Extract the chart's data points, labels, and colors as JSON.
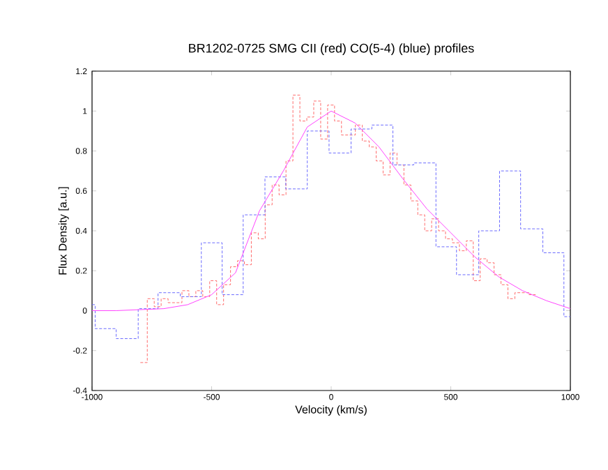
{
  "chart_data": {
    "type": "step",
    "title": "BR1202-0725 SMG CII (red) CO(5-4) (blue) profiles",
    "xlabel": "Velocity (km/s)",
    "ylabel": "Flux Density [a.u.]",
    "xlim": [
      -1000,
      1000
    ],
    "ylim": [
      -0.4,
      1.2
    ],
    "xticks": [
      -1000,
      -500,
      0,
      500,
      1000
    ],
    "yticks": [
      -0.4,
      -0.2,
      0,
      0.2,
      0.4,
      0.6,
      0.8,
      1,
      1.2
    ],
    "grid": false,
    "series": [
      {
        "color": "#ff6b6b",
        "line_style": "dashed",
        "x": [
          -798,
          -769,
          -740,
          -711,
          -682,
          -653,
          -624,
          -595,
          -566,
          -537,
          -508,
          -479,
          -450,
          -421,
          -392,
          -363,
          -334,
          -305,
          -276,
          -247,
          -218,
          -189,
          -160,
          -131,
          -102,
          -73,
          -44,
          -15,
          14,
          43,
          72,
          101,
          130,
          159,
          188,
          217,
          246,
          275,
          304,
          333,
          362,
          391,
          420,
          449,
          478,
          507,
          536,
          565,
          594,
          623,
          652,
          681,
          710,
          739,
          768,
          797,
          826,
          855
        ],
        "values": [
          -0.26,
          0.06,
          0.02,
          0.06,
          0.04,
          0.04,
          0.1,
          0.07,
          0.1,
          0.07,
          0.15,
          0.03,
          0.13,
          0.22,
          0.25,
          0.23,
          0.39,
          0.36,
          0.53,
          0.63,
          0.58,
          0.75,
          1.08,
          0.95,
          0.97,
          1.05,
          0.86,
          1.03,
          0.95,
          0.88,
          0.88,
          0.93,
          0.85,
          0.82,
          0.75,
          0.68,
          0.79,
          0.73,
          0.63,
          0.55,
          0.48,
          0.4,
          0.46,
          0.4,
          0.36,
          0.34,
          0.3,
          0.35,
          0.15,
          0.26,
          0.24,
          0.18,
          0.13,
          0.06,
          0.09,
          0.09,
          0.08,
          0.08
        ]
      },
      {
        "color": "#6b6bff",
        "line_style": "dashed",
        "x": [
          -1000,
          -987,
          -899,
          -807,
          -724,
          -631,
          -543,
          -456,
          -368,
          -277,
          -190,
          -100,
          -9,
          83,
          170,
          258,
          345,
          438,
          524,
          617,
          704,
          792,
          885,
          973,
          1000
        ],
        "values": [
          0.03,
          -0.09,
          -0.14,
          0.01,
          0.09,
          0.07,
          0.34,
          0.08,
          0.48,
          0.67,
          0.61,
          0.9,
          0.79,
          0.91,
          0.93,
          0.73,
          0.74,
          0.32,
          0.18,
          0.4,
          0.7,
          0.41,
          0.29,
          -0.03,
          -0.03
        ]
      },
      {
        "type": "line",
        "color": "#ff44ff",
        "line_style": "solid",
        "x": [
          -1000,
          -900,
          -800,
          -700,
          -600,
          -500,
          -400,
          -300,
          -200,
          -100,
          0,
          100,
          200,
          300,
          400,
          500,
          600,
          700,
          800,
          900,
          1000
        ],
        "values": [
          0,
          0,
          0.005,
          0.01,
          0.03,
          0.08,
          0.19,
          0.5,
          0.7,
          0.92,
          1.0,
          0.94,
          0.82,
          0.66,
          0.51,
          0.39,
          0.27,
          0.17,
          0.1,
          0.05,
          0.01
        ]
      }
    ]
  }
}
